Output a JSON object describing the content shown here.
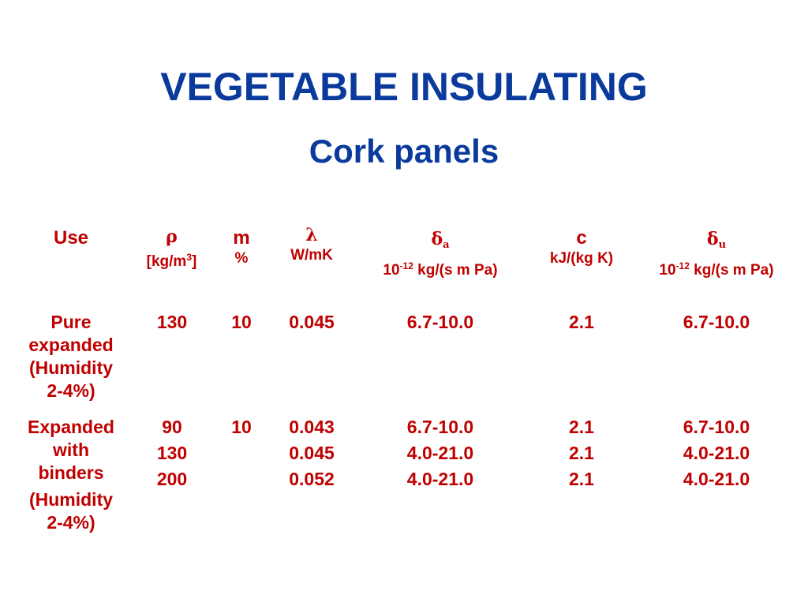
{
  "title": "VEGETABLE INSULATING",
  "subtitle": "Cork panels",
  "colors": {
    "title": "#0a3a9c",
    "table": "#c00000"
  },
  "headers": {
    "use": {
      "symbol": "Use",
      "unit": ""
    },
    "rho": {
      "symbol": "ρ",
      "unit_pre": "[kg/m",
      "unit_sup": "3",
      "unit_post": "]"
    },
    "m": {
      "symbol": "m",
      "unit": "%"
    },
    "lambda": {
      "symbol": "λ",
      "unit": "W/mK"
    },
    "delta_a": {
      "symbol": "δ",
      "subscript": "a",
      "unit_pre": "10",
      "unit_sup": "-12",
      "unit_post": " kg/(s m Pa)"
    },
    "c": {
      "symbol": "c",
      "unit": "kJ/(kg K)"
    },
    "delta_u": {
      "symbol": "δ",
      "subscript": "u",
      "unit_pre": "10",
      "unit_sup": "-12",
      "unit_post": " kg/(s m Pa)"
    }
  },
  "rows": [
    {
      "use_lines": [
        "Pure",
        "expanded",
        "(Humidity",
        "2-4%)"
      ],
      "rho": [
        "130"
      ],
      "m": [
        "10"
      ],
      "lambda": [
        "0.045"
      ],
      "delta_a": [
        "6.7-10.0"
      ],
      "c": [
        "2.1"
      ],
      "delta_u": [
        "6.7-10.0"
      ]
    },
    {
      "use_lines": [
        "Expanded",
        "with",
        "binders",
        "(Humidity",
        "2-4%)"
      ],
      "rho": [
        "90",
        "130",
        "200"
      ],
      "m": [
        "10"
      ],
      "lambda": [
        "0.043",
        "0.045",
        "0.052"
      ],
      "delta_a": [
        "6.7-10.0",
        "4.0-21.0",
        "4.0-21.0"
      ],
      "c": [
        "2.1",
        "2.1",
        "2.1"
      ],
      "delta_u": [
        "6.7-10.0",
        "4.0-21.0",
        "4.0-21.0"
      ]
    }
  ]
}
